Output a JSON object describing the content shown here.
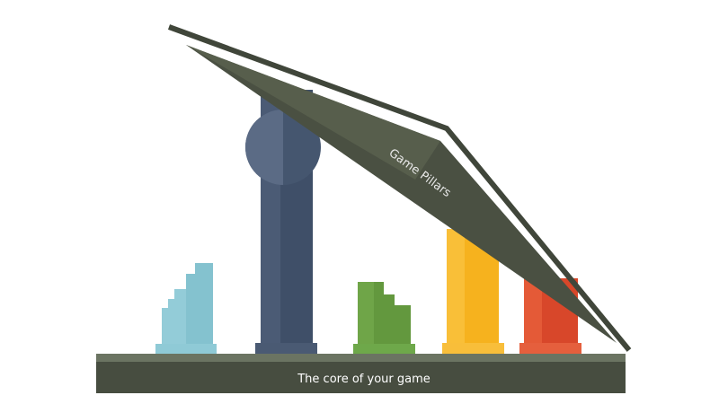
{
  "diagram": {
    "roof_label": "Game Pillars",
    "base_label": "The core of your game",
    "colors": {
      "base_top": "#6b7462",
      "base_front": "#474d40",
      "roof": "#4a5042",
      "roof_light": "#585f4e",
      "roof_edge": "#3e4437",
      "pillar_blue_light": "#84c2cf",
      "pillar_navy": "#3f4f68",
      "pillar_green": "#63983e",
      "pillar_yellow": "#f6b21e",
      "pillar_red": "#e05130"
    }
  }
}
